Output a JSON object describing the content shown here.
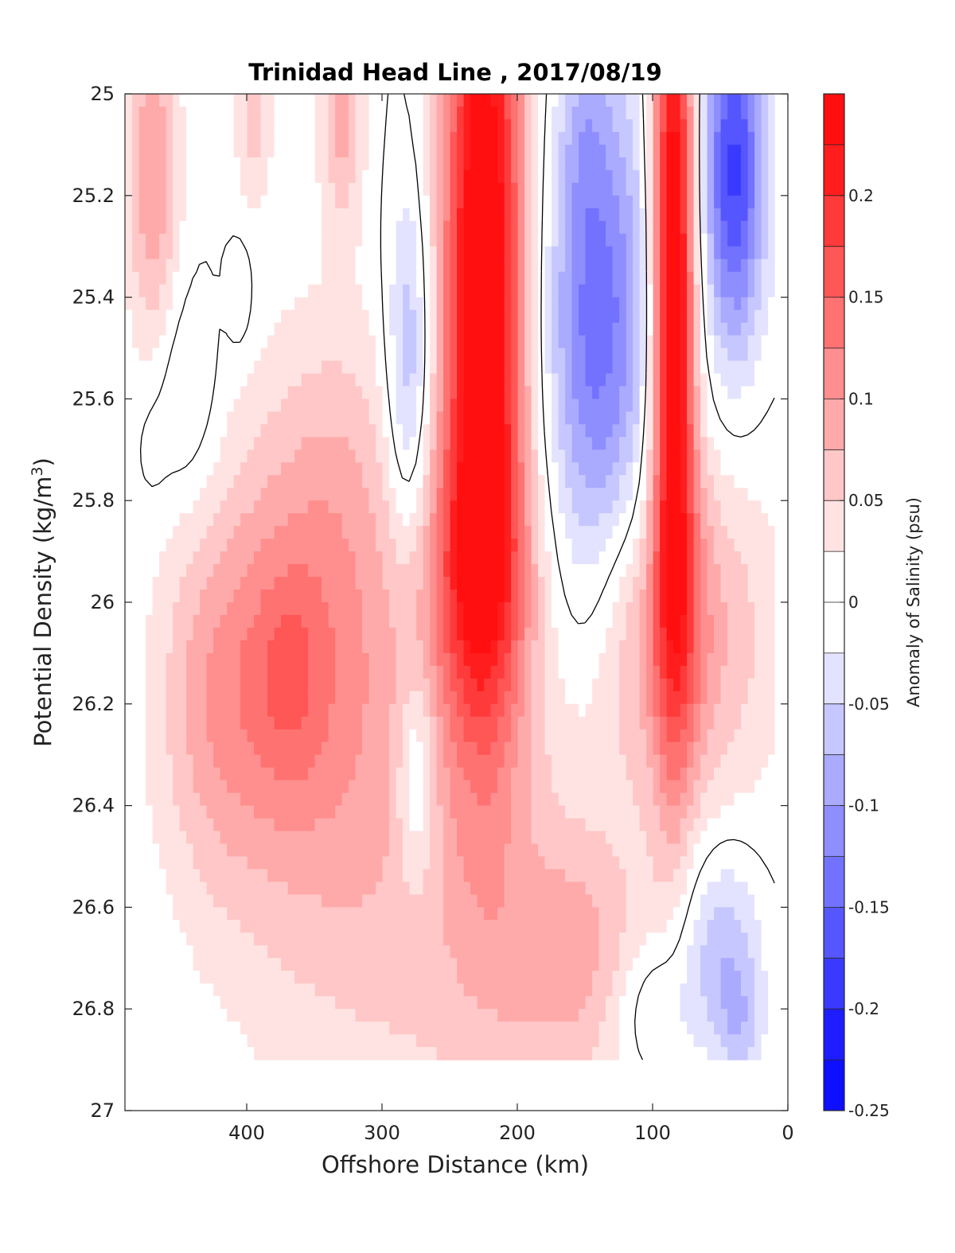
{
  "chart_data": {
    "type": "heatmap",
    "title": "Trinidad Head Line , 2017/08/19",
    "xlabel": "Offshore Distance (km)",
    "ylabel_main": "Potential Density (kg/m",
    "ylabel_sup": "3",
    "ylabel_close": ")",
    "xlim": [
      490,
      0
    ],
    "ylim": [
      27,
      25
    ],
    "x_ticks": [
      {
        "value": 400,
        "label": "400"
      },
      {
        "value": 300,
        "label": "300"
      },
      {
        "value": 200,
        "label": "200"
      },
      {
        "value": 100,
        "label": "100"
      },
      {
        "value": 0,
        "label": "0"
      }
    ],
    "y_ticks": [
      {
        "value": 25,
        "label": "25"
      },
      {
        "value": 25.2,
        "label": "25.2"
      },
      {
        "value": 25.4,
        "label": "25.4"
      },
      {
        "value": 25.6,
        "label": "25.6"
      },
      {
        "value": 25.8,
        "label": "25.8"
      },
      {
        "value": 26,
        "label": "26"
      },
      {
        "value": 26.2,
        "label": "26.2"
      },
      {
        "value": 26.4,
        "label": "26.4"
      },
      {
        "value": 26.6,
        "label": "26.6"
      },
      {
        "value": 26.8,
        "label": "26.8"
      },
      {
        "value": 27,
        "label": "27"
      }
    ],
    "colorbar": {
      "label": "Anomaly of Salinity (psu)",
      "range": [
        -0.25,
        0.25
      ],
      "step": 0.025,
      "ticks": [
        {
          "value": 0.2,
          "label": "0.2"
        },
        {
          "value": 0.15,
          "label": "0.15"
        },
        {
          "value": 0.1,
          "label": "0.1"
        },
        {
          "value": 0.05,
          "label": "0.05"
        },
        {
          "value": 0,
          "label": "0"
        },
        {
          "value": -0.05,
          "label": "-0.05"
        },
        {
          "value": -0.1,
          "label": "-0.1"
        },
        {
          "value": -0.15,
          "label": "-0.15"
        },
        {
          "value": -0.2,
          "label": "-0.2"
        },
        {
          "value": -0.25,
          "label": "-0.25"
        }
      ]
    },
    "data_extent": {
      "x": [
        10,
        490
      ],
      "y": [
        25,
        26.9
      ]
    },
    "features": [
      {
        "x": 470,
        "y": 25.15,
        "sx": 14,
        "sy": 0.25,
        "amp": 0.1
      },
      {
        "x": 470,
        "y": 25.7,
        "sx": 8,
        "sy": 0.08,
        "amp": -0.015
      },
      {
        "x": 330,
        "y": 25.05,
        "sx": 12,
        "sy": 0.15,
        "amp": 0.08
      },
      {
        "x": 395,
        "y": 25.05,
        "sx": 10,
        "sy": 0.12,
        "amp": 0.06
      },
      {
        "x": 360,
        "y": 26.1,
        "sx": 55,
        "sy": 0.35,
        "amp": 0.1
      },
      {
        "x": 370,
        "y": 26.15,
        "sx": 18,
        "sy": 0.15,
        "amp": 0.04
      },
      {
        "x": 330,
        "y": 25.7,
        "sx": 35,
        "sy": 0.25,
        "amp": 0.03
      },
      {
        "x": 425,
        "y": 26.2,
        "sx": 30,
        "sy": 0.25,
        "amp": 0.05
      },
      {
        "x": 445,
        "y": 25.6,
        "sx": 18,
        "sy": 0.15,
        "amp": -0.04
      },
      {
        "x": 405,
        "y": 25.4,
        "sx": 7,
        "sy": 0.08,
        "amp": -0.03
      },
      {
        "x": 280,
        "y": 25.55,
        "sx": 12,
        "sy": 0.25,
        "amp": -0.09
      },
      {
        "x": 275,
        "y": 26.35,
        "sx": 10,
        "sy": 0.15,
        "amp": -0.07
      },
      {
        "x": 225,
        "y": 25.35,
        "sx": 22,
        "sy": 0.6,
        "amp": 0.28
      },
      {
        "x": 230,
        "y": 25.95,
        "sx": 30,
        "sy": 0.2,
        "amp": 0.09
      },
      {
        "x": 240,
        "y": 26.6,
        "sx": 110,
        "sy": 0.4,
        "amp": 0.06
      },
      {
        "x": 160,
        "y": 26.7,
        "sx": 35,
        "sy": 0.15,
        "amp": 0.05
      },
      {
        "x": 140,
        "y": 25.45,
        "sx": 28,
        "sy": 0.35,
        "amp": -0.14
      },
      {
        "x": 150,
        "y": 25.05,
        "sx": 12,
        "sy": 0.15,
        "amp": -0.03
      },
      {
        "x": 85,
        "y": 25.35,
        "sx": 11,
        "sy": 0.55,
        "amp": 0.28
      },
      {
        "x": 80,
        "y": 26.05,
        "sx": 20,
        "sy": 0.25,
        "amp": 0.09
      },
      {
        "x": 120,
        "y": 26.05,
        "sx": 18,
        "sy": 0.2,
        "amp": 0.05
      },
      {
        "x": 40,
        "y": 25.15,
        "sx": 16,
        "sy": 0.25,
        "amp": -0.18
      },
      {
        "x": 40,
        "y": 26.05,
        "sx": 30,
        "sy": 0.25,
        "amp": 0.05
      },
      {
        "x": 50,
        "y": 26.68,
        "sx": 22,
        "sy": 0.15,
        "amp": -0.08
      },
      {
        "x": 100,
        "y": 26.8,
        "sx": 22,
        "sy": 0.1,
        "amp": -0.05
      },
      {
        "x": 35,
        "y": 26.85,
        "sx": 12,
        "sy": 0.1,
        "amp": -0.05
      }
    ]
  }
}
